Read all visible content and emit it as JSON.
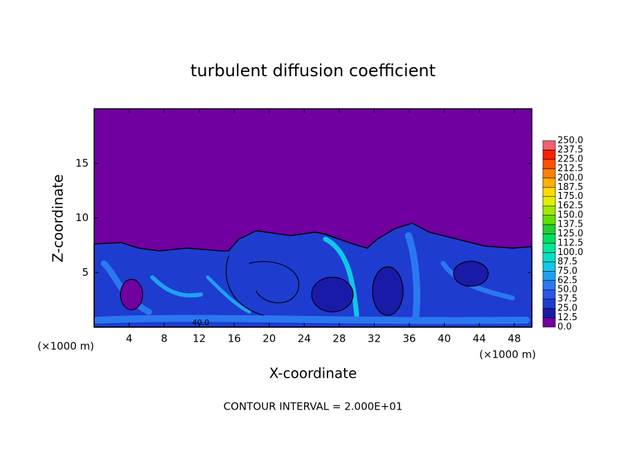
{
  "chart_data": {
    "type": "contour",
    "title": "turbulent diffusion coefficient",
    "x_label": "X-coordinate",
    "y_label": "Z-coordinate",
    "x_unit": "(×1000 m)",
    "y_unit": "(×1000 m)",
    "xlim": [
      0,
      50
    ],
    "xticks": [
      4,
      8,
      12,
      16,
      20,
      24,
      28,
      32,
      36,
      40,
      44,
      48
    ],
    "ylim": [
      0,
      20
    ],
    "yticks": [
      5,
      10,
      15
    ],
    "annotation": "CONTOUR INTERVAL = 2.000E+01",
    "contour_label": {
      "value": 40,
      "label": "40.0"
    },
    "colorbar": {
      "ticks": [
        {
          "value": 0,
          "label": "0.0"
        },
        12.5,
        {
          "value": 25,
          "label": "25.0"
        },
        37.5,
        {
          "value": 50,
          "label": "50.0"
        },
        62.5,
        {
          "value": 75,
          "label": "75.0"
        },
        87.5,
        {
          "value": 100,
          "label": "100.0"
        },
        112.5,
        {
          "value": 125,
          "label": "125.0"
        },
        137.5,
        {
          "value": 150,
          "label": "150.0"
        },
        162.5,
        {
          "value": 175,
          "label": "175.0"
        },
        187.5,
        {
          "value": 200,
          "label": "200.0"
        },
        212.5,
        {
          "value": 225,
          "label": "225.0"
        },
        237.5,
        {
          "value": 250,
          "label": "250.0"
        }
      ],
      "colors": [
        "#7000a0",
        "#1a1aa8",
        "#1e3cd0",
        "#2a55e8",
        "#2a78f0",
        "#20a0f0",
        "#10c8e8",
        "#00e0c8",
        "#00e898",
        "#00e060",
        "#20d030",
        "#60e000",
        "#a0e800",
        "#e0f000",
        "#ffd800",
        "#ffb000",
        "#ff8000",
        "#ff5000",
        "#ff2000",
        "#f06070"
      ]
    }
  }
}
